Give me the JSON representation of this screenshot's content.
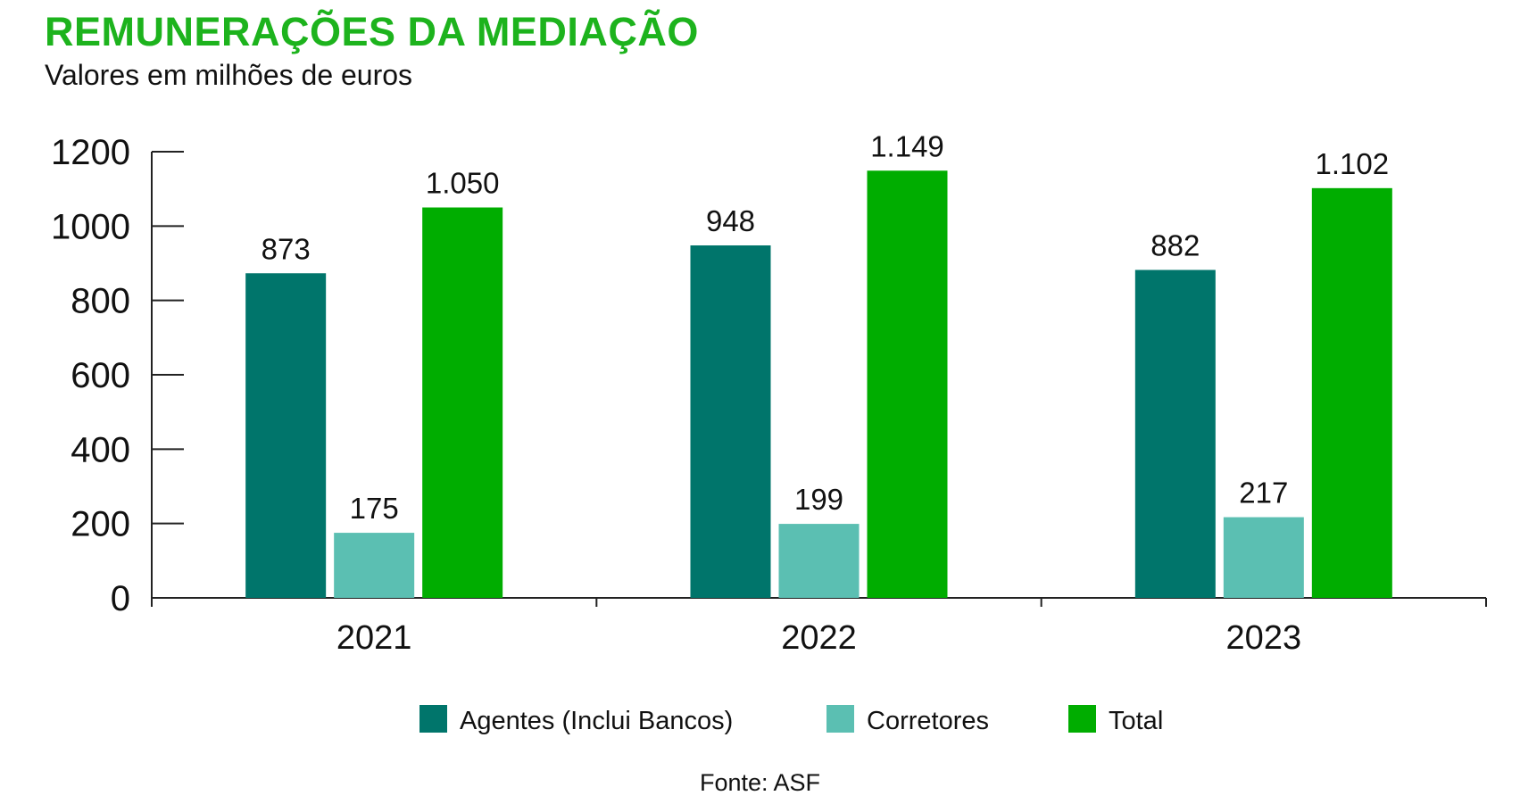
{
  "title": "REMUNERAÇÕES DA MEDIAÇÃO",
  "subtitle": "Valores em milhões de euros",
  "source": "Fonte: ASF",
  "chart_data": {
    "type": "bar",
    "categories": [
      "2021",
      "2022",
      "2023"
    ],
    "ylim": [
      0,
      1200
    ],
    "yticks": [
      0,
      200,
      400,
      600,
      800,
      1000,
      1200
    ],
    "grid": false,
    "legend_position": "bottom",
    "series": [
      {
        "name": "Agentes (Inclui Bancos)",
        "color": "#00756b",
        "values": [
          873,
          948,
          882
        ],
        "labels": [
          "873",
          "948",
          "882"
        ]
      },
      {
        "name": "Corretores",
        "color": "#5bbfb2",
        "values": [
          175,
          199,
          217
        ],
        "labels": [
          "175",
          "199",
          "217"
        ]
      },
      {
        "name": "Total",
        "color": "#00ad00",
        "values": [
          1050,
          1149,
          1102
        ],
        "labels": [
          "1.050",
          "1.149",
          "1.102"
        ]
      }
    ]
  }
}
